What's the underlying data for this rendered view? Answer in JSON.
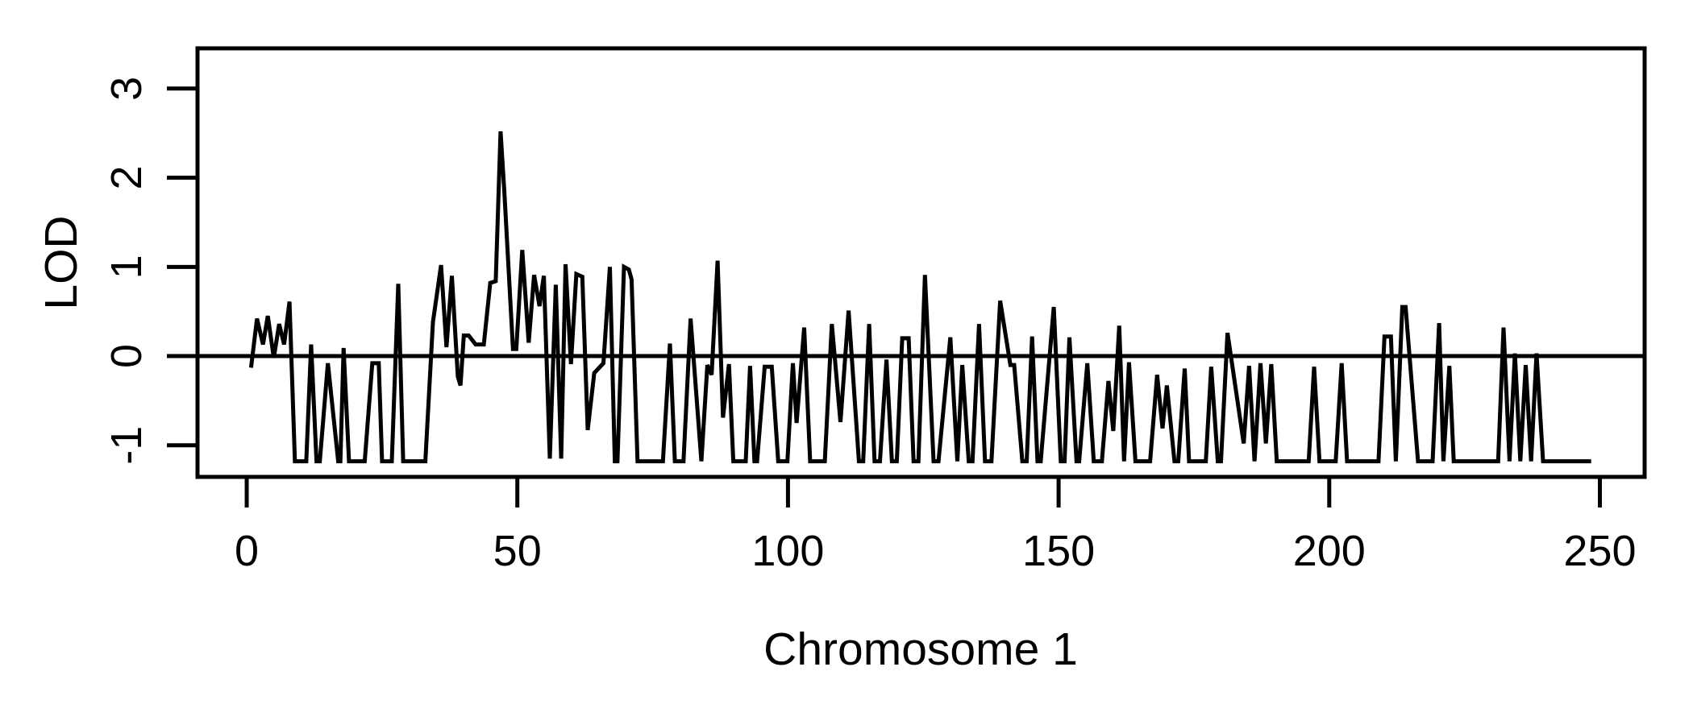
{
  "figure": {
    "background_color": "#ffffff",
    "foreground_color": "#000000"
  },
  "chart_data": {
    "type": "line",
    "title": "",
    "xlabel": "Chromosome 1",
    "ylabel": "LOD",
    "x_ticks": [
      0,
      50,
      100,
      150,
      200,
      250
    ],
    "y_ticks": [
      -1,
      0,
      1,
      2,
      3
    ],
    "xlim": [
      -9.09,
      258.27
    ],
    "ylim": [
      -1.355,
      3.451
    ],
    "grid": false,
    "legend_position": "none",
    "reference_line_y": 0,
    "line_color": "#000000",
    "series": [
      {
        "name": "LOD",
        "points": [
          [
            0.8,
            -0.13
          ],
          [
            1.9,
            0.42
          ],
          [
            3.0,
            0.13
          ],
          [
            3.9,
            0.45
          ],
          [
            5.0,
            -0.02
          ],
          [
            6.0,
            0.36
          ],
          [
            6.9,
            0.13
          ],
          [
            7.9,
            0.61
          ],
          [
            8.9,
            -1.18
          ],
          [
            11.0,
            -1.18
          ],
          [
            11.9,
            0.13
          ],
          [
            12.9,
            -1.18
          ],
          [
            13.5,
            -1.18
          ],
          [
            15.0,
            -0.08
          ],
          [
            16.9,
            -1.18
          ],
          [
            17.3,
            -1.18
          ],
          [
            17.9,
            0.09
          ],
          [
            18.9,
            -1.18
          ],
          [
            21.8,
            -1.18
          ],
          [
            23.2,
            -0.08
          ],
          [
            24.4,
            -0.08
          ],
          [
            25.0,
            -1.18
          ],
          [
            26.8,
            -1.18
          ],
          [
            28.0,
            0.81
          ],
          [
            28.9,
            -1.18
          ],
          [
            33.0,
            -1.18
          ],
          [
            34.4,
            0.38
          ],
          [
            35.9,
            1.02
          ],
          [
            36.9,
            0.1
          ],
          [
            37.9,
            0.9
          ],
          [
            39.0,
            -0.23
          ],
          [
            39.5,
            -0.33
          ],
          [
            40.1,
            0.23
          ],
          [
            41.0,
            0.23
          ],
          [
            42.3,
            0.13
          ],
          [
            43.8,
            0.13
          ],
          [
            45.0,
            0.82
          ],
          [
            46.0,
            0.84
          ],
          [
            46.9,
            2.52
          ],
          [
            47.6,
            1.84
          ],
          [
            49.2,
            0.08
          ],
          [
            49.8,
            0.08
          ],
          [
            50.9,
            1.19
          ],
          [
            52.1,
            0.15
          ],
          [
            53.1,
            0.91
          ],
          [
            54.1,
            0.56
          ],
          [
            54.9,
            0.9
          ],
          [
            56.0,
            -1.15
          ],
          [
            57.1,
            0.8
          ],
          [
            58.1,
            -1.15
          ],
          [
            58.9,
            1.03
          ],
          [
            59.9,
            -0.09
          ],
          [
            60.9,
            0.92
          ],
          [
            62.0,
            0.89
          ],
          [
            63.0,
            -0.83
          ],
          [
            64.2,
            -0.19
          ],
          [
            65.9,
            -0.08
          ],
          [
            67.1,
            1.0
          ],
          [
            68.0,
            -1.18
          ],
          [
            68.5,
            -1.18
          ],
          [
            69.7,
            1.0
          ],
          [
            70.6,
            0.97
          ],
          [
            71.1,
            0.86
          ],
          [
            72.2,
            -1.18
          ],
          [
            76.9,
            -1.18
          ],
          [
            78.2,
            0.14
          ],
          [
            79.1,
            -1.18
          ],
          [
            80.7,
            -1.18
          ],
          [
            82.0,
            0.42
          ],
          [
            84.0,
            -1.18
          ],
          [
            85.1,
            -0.1
          ],
          [
            85.9,
            -0.21
          ],
          [
            87.0,
            1.07
          ],
          [
            88.0,
            -0.69
          ],
          [
            89.1,
            -0.09
          ],
          [
            89.9,
            -1.18
          ],
          [
            92.2,
            -1.18
          ],
          [
            93.0,
            -0.11
          ],
          [
            93.8,
            -1.18
          ],
          [
            94.3,
            -1.18
          ],
          [
            95.7,
            -0.12
          ],
          [
            97.0,
            -0.12
          ],
          [
            98.2,
            -1.18
          ],
          [
            99.9,
            -1.18
          ],
          [
            100.9,
            -0.08
          ],
          [
            101.6,
            -0.75
          ],
          [
            103.0,
            0.32
          ],
          [
            104.1,
            -1.18
          ],
          [
            106.8,
            -1.18
          ],
          [
            108.1,
            0.36
          ],
          [
            109.7,
            -0.74
          ],
          [
            111.2,
            0.51
          ],
          [
            113.1,
            -1.18
          ],
          [
            113.9,
            -1.18
          ],
          [
            115.0,
            0.36
          ],
          [
            116.0,
            -1.18
          ],
          [
            117.0,
            -1.18
          ],
          [
            118.2,
            -0.04
          ],
          [
            119.2,
            -1.18
          ],
          [
            120.1,
            -1.18
          ],
          [
            121.1,
            0.2
          ],
          [
            122.3,
            0.2
          ],
          [
            123.2,
            -1.18
          ],
          [
            124.1,
            -1.18
          ],
          [
            125.3,
            0.91
          ],
          [
            126.9,
            -1.18
          ],
          [
            127.8,
            -1.18
          ],
          [
            130.0,
            0.21
          ],
          [
            131.3,
            -1.18
          ],
          [
            132.2,
            -0.1
          ],
          [
            133.4,
            -1.18
          ],
          [
            134.1,
            -1.18
          ],
          [
            135.3,
            0.36
          ],
          [
            136.4,
            -1.18
          ],
          [
            137.6,
            -1.18
          ],
          [
            139.2,
            0.62
          ],
          [
            141.1,
            -0.1
          ],
          [
            141.8,
            -0.1
          ],
          [
            143.3,
            -1.18
          ],
          [
            144.1,
            -1.18
          ],
          [
            145.1,
            0.22
          ],
          [
            146.1,
            -1.18
          ],
          [
            146.7,
            -1.18
          ],
          [
            149.1,
            0.55
          ],
          [
            150.4,
            -1.18
          ],
          [
            151.1,
            -1.18
          ],
          [
            152.0,
            0.21
          ],
          [
            153.3,
            -1.18
          ],
          [
            153.8,
            -1.18
          ],
          [
            155.3,
            -0.08
          ],
          [
            156.5,
            -1.18
          ],
          [
            158.0,
            -1.18
          ],
          [
            159.2,
            -0.28
          ],
          [
            160.1,
            -0.84
          ],
          [
            161.2,
            0.34
          ],
          [
            162.1,
            -1.18
          ],
          [
            163.0,
            -0.07
          ],
          [
            164.2,
            -1.18
          ],
          [
            166.9,
            -1.18
          ],
          [
            168.2,
            -0.21
          ],
          [
            169.2,
            -0.81
          ],
          [
            170.0,
            -0.33
          ],
          [
            171.4,
            -1.18
          ],
          [
            172.1,
            -1.18
          ],
          [
            173.3,
            -0.14
          ],
          [
            174.1,
            -1.18
          ],
          [
            177.2,
            -1.18
          ],
          [
            178.2,
            -0.12
          ],
          [
            179.4,
            -1.18
          ],
          [
            180.0,
            -1.18
          ],
          [
            181.2,
            0.26
          ],
          [
            184.2,
            -0.98
          ],
          [
            185.2,
            -0.11
          ],
          [
            186.2,
            -1.18
          ],
          [
            187.3,
            -0.08
          ],
          [
            188.3,
            -0.98
          ],
          [
            189.3,
            -0.09
          ],
          [
            190.3,
            -1.18
          ],
          [
            196.2,
            -1.18
          ],
          [
            197.2,
            -0.12
          ],
          [
            198.2,
            -1.18
          ],
          [
            201.2,
            -1.18
          ],
          [
            202.3,
            -0.08
          ],
          [
            203.3,
            -1.18
          ],
          [
            209.1,
            -1.18
          ],
          [
            210.2,
            0.22
          ],
          [
            211.4,
            0.22
          ],
          [
            212.3,
            -1.18
          ],
          [
            213.5,
            0.55
          ],
          [
            214.1,
            0.55
          ],
          [
            216.4,
            -1.18
          ],
          [
            219.1,
            -1.18
          ],
          [
            220.3,
            0.37
          ],
          [
            221.1,
            -1.18
          ],
          [
            222.2,
            -0.11
          ],
          [
            223.0,
            -1.18
          ],
          [
            231.2,
            -1.18
          ],
          [
            232.2,
            0.32
          ],
          [
            233.3,
            -1.18
          ],
          [
            234.3,
            0.03
          ],
          [
            235.3,
            -1.18
          ],
          [
            236.3,
            -0.1
          ],
          [
            237.3,
            -1.18
          ],
          [
            238.3,
            0.03
          ],
          [
            239.5,
            -1.18
          ],
          [
            248.4,
            -1.18
          ]
        ]
      }
    ]
  }
}
